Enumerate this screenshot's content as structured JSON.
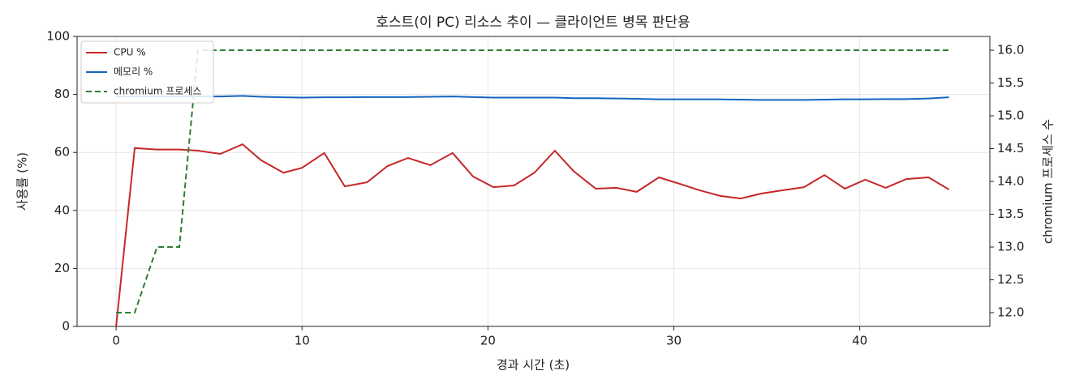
{
  "chart_data": {
    "type": "line",
    "title": "호스트(이 PC) 리소스 추이 — 클라이언트 병목 판단용",
    "x_label": "경과 시간 (초)",
    "y_label": "사용률 (%)",
    "y2_label": "chromium 프로세스 수",
    "x": [
      0,
      1.0,
      2.2,
      3.4,
      4.4,
      5.6,
      6.8,
      7.8,
      9.0,
      10.0,
      11.2,
      12.3,
      13.5,
      14.6,
      15.7,
      16.9,
      18.1,
      19.2,
      20.3,
      21.4,
      22.5,
      23.6,
      24.6,
      25.8,
      26.9,
      28.0,
      29.2,
      30.3,
      31.4,
      32.5,
      33.6,
      34.7,
      35.8,
      37.0,
      38.1,
      39.2,
      40.3,
      41.4,
      42.5,
      43.7,
      44.8
    ],
    "series": [
      {
        "name": "CPU %",
        "color": "#c62828",
        "style": "solid",
        "values": [
          0,
          61.5,
          61,
          61,
          60.6,
          59.5,
          62.8,
          57.3,
          53,
          54.7,
          59.8,
          48.3,
          49.7,
          55.3,
          58.1,
          55.6,
          59.8,
          51.7,
          48,
          48.6,
          53,
          60.6,
          53.6,
          47.5,
          47.8,
          46.4,
          51.4,
          49.2,
          46.9,
          45,
          44.1,
          45.8,
          46.9,
          48,
          52.2,
          47.5,
          50.6,
          47.8,
          50.8,
          51.4,
          47.2
        ]
      },
      {
        "name": "메모리 %",
        "color": "#1565c0",
        "style": "solid",
        "values": [
          79.3,
          79.3,
          79.3,
          79.3,
          79.3,
          79.3,
          79.5,
          79.2,
          79,
          78.9,
          79,
          79,
          79.1,
          79.1,
          79.1,
          79.2,
          79.3,
          79.1,
          78.9,
          78.9,
          78.9,
          78.9,
          78.7,
          78.7,
          78.6,
          78.5,
          78.3,
          78.3,
          78.3,
          78.3,
          78.2,
          78.1,
          78.1,
          78.1,
          78.2,
          78.3,
          78.3,
          78.4,
          78.4,
          78.6,
          79
        ]
      },
      {
        "name": "chromium 프로세스",
        "color": "#2e7d32",
        "style": "dashed",
        "axis": "y2",
        "values": [
          12,
          12,
          13,
          13,
          16,
          16,
          16,
          16,
          16,
          16,
          16,
          16,
          16,
          16,
          16,
          16,
          16,
          16,
          16,
          16,
          16,
          16,
          16,
          16,
          16,
          16,
          16,
          16,
          16,
          16,
          16,
          16,
          16,
          16,
          16,
          16,
          16,
          16,
          16,
          16,
          16
        ]
      }
    ],
    "xlim": [
      -2.1,
      47.0
    ],
    "xticks": [
      0,
      10,
      20,
      30,
      40
    ],
    "ylim": [
      0,
      100
    ],
    "yticks": [
      0,
      20,
      40,
      60,
      80,
      100
    ],
    "y2lim": [
      11.79,
      16.21
    ],
    "y2ticks": [
      {
        "value": 12,
        "label": "12.0"
      },
      12.5,
      {
        "value": 13,
        "label": "13.0"
      },
      13.5,
      {
        "value": 14,
        "label": "14.0"
      },
      14.5,
      {
        "value": 15,
        "label": "15.0"
      },
      15.5,
      {
        "value": 16,
        "label": "16.0"
      }
    ],
    "grid": true,
    "legend": "upper-left"
  }
}
